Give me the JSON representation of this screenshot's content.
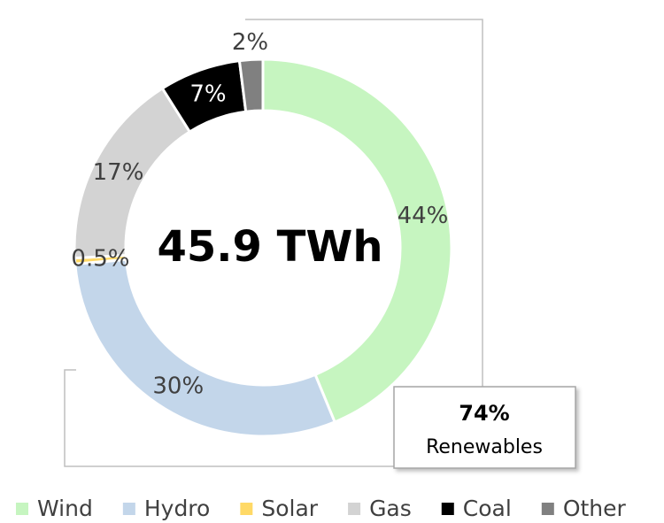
{
  "chart_data": {
    "type": "donut",
    "center_label": "45.9 TWh",
    "categories": [
      "Wind",
      "Hydro",
      "Solar",
      "Gas",
      "Coal",
      "Other"
    ],
    "values": [
      44,
      30,
      0.5,
      17,
      7,
      2
    ],
    "value_labels": [
      "44%",
      "30%",
      "0.5%",
      "17%",
      "7%",
      "2%"
    ],
    "colors": [
      "#c6f5c0",
      "#c3d6ea",
      "#ffd966",
      "#d3d3d3",
      "#000000",
      "#808080"
    ],
    "annotation": {
      "value": "74%",
      "text": "Renewables"
    },
    "legend": "bottom"
  }
}
